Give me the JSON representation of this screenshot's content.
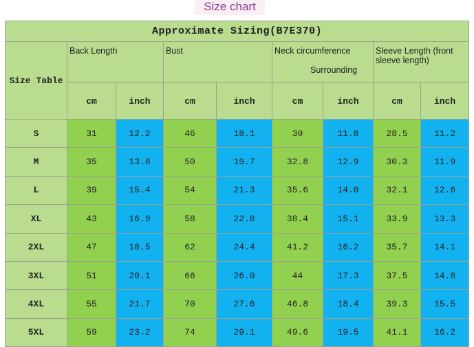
{
  "header": {
    "title": "Size chart"
  },
  "table": {
    "title": "Approximate Sizing(B7E370)",
    "size_label": "Size Table",
    "groups": [
      {
        "label": "Back Length"
      },
      {
        "label": "Bust"
      },
      {
        "label": "Neck circumference",
        "note": "Surrounding"
      },
      {
        "label": "Sleeve Length (front sleeve length)"
      }
    ],
    "units": [
      "cm",
      "inch",
      "cm",
      "inch",
      "cm",
      "inch",
      "cm",
      "inch"
    ],
    "rows": [
      {
        "size": "S",
        "values": [
          "31",
          "12.2",
          "46",
          "18.1",
          "30",
          "11.8",
          "28.5",
          "11.2"
        ]
      },
      {
        "size": "M",
        "values": [
          "35",
          "13.8",
          "50",
          "19.7",
          "32.8",
          "12.9",
          "30.3",
          "11.9"
        ]
      },
      {
        "size": "L",
        "values": [
          "39",
          "15.4",
          "54",
          "21.3",
          "35.6",
          "14.0",
          "32.1",
          "12.6"
        ]
      },
      {
        "size": "XL",
        "values": [
          "43",
          "16.9",
          "58",
          "22.8",
          "38.4",
          "15.1",
          "33.9",
          "13.3"
        ]
      },
      {
        "size": "2XL",
        "values": [
          "47",
          "18.5",
          "62",
          "24.4",
          "41.2",
          "16.2",
          "35.7",
          "14.1"
        ]
      },
      {
        "size": "3XL",
        "values": [
          "51",
          "20.1",
          "66",
          "26.0",
          "44",
          "17.3",
          "37.5",
          "14.8"
        ]
      },
      {
        "size": "4XL",
        "values": [
          "55",
          "21.7",
          "70",
          "27.6",
          "46.8",
          "18.4",
          "39.3",
          "15.5"
        ]
      },
      {
        "size": "5XL",
        "values": [
          "59",
          "23.2",
          "74",
          "29.1",
          "49.6",
          "19.5",
          "41.1",
          "16.2"
        ]
      }
    ]
  }
}
